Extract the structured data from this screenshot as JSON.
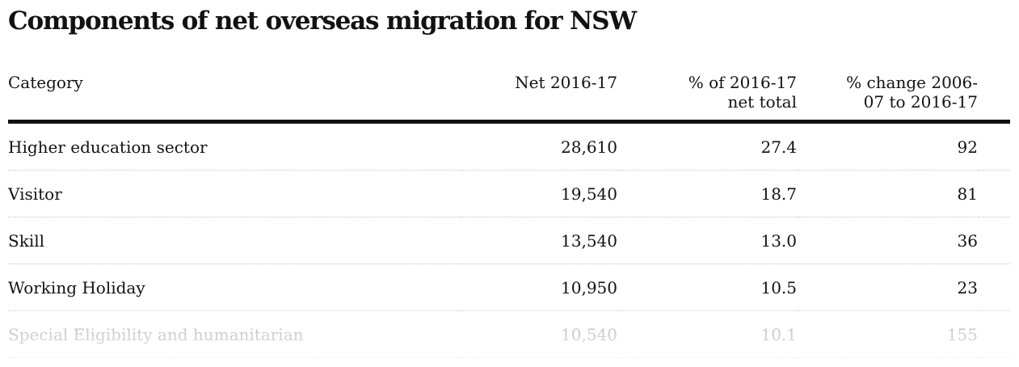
{
  "title": "Components of net overseas migration for NSW",
  "table": {
    "headers": {
      "category": "Category",
      "net": "Net 2016-17",
      "pct_line1": "% of 2016-17",
      "pct_line2": "net total",
      "change_line1": "% change 2006-",
      "change_line2": "07 to 2016-17"
    },
    "rows": [
      {
        "category": "Higher education sector",
        "net": "28,610",
        "pct": "27.4",
        "change": "92"
      },
      {
        "category": "Visitor",
        "net": "19,540",
        "pct": "18.7",
        "change": "81"
      },
      {
        "category": "Skill",
        "net": "13,540",
        "pct": "13.0",
        "change": "36"
      },
      {
        "category": "Working Holiday",
        "net": "10,950",
        "pct": "10.5",
        "change": "23"
      },
      {
        "category": "Special Eligibility and humanitarian",
        "net": "10,540",
        "pct": "10.1",
        "change": "155"
      }
    ]
  }
}
